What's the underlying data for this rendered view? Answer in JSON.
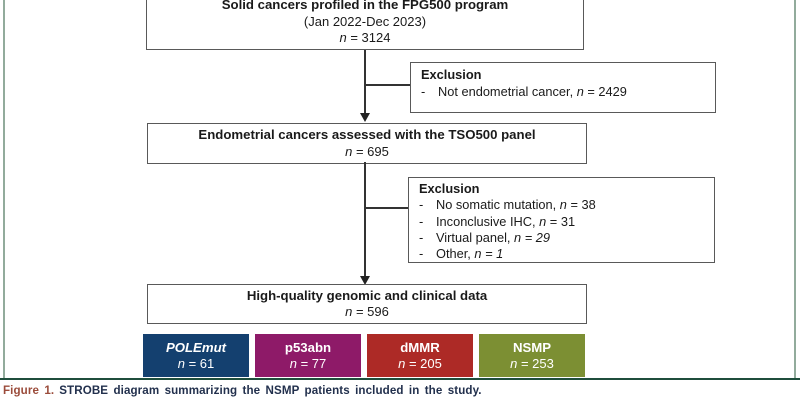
{
  "frame": {
    "side_rule_color": "#92ab9c",
    "bottom_rule_color": "#1f4e3c"
  },
  "diagram": {
    "box_top": {
      "title": "Solid cancers profiled in the FPG500 program",
      "subtitle": "(Jan 2022-Dec 2023)",
      "n_italic": "n",
      "n_rest": " = 3124"
    },
    "exclusion1": {
      "heading": "Exclusion",
      "bullets": [
        {
          "dash": "-",
          "text": "Not endometrial cancer, ",
          "it": "n",
          "rest": " = 2429"
        }
      ]
    },
    "box_tso": {
      "title": "Endometrial cancers assessed with the TSO500 panel",
      "n_italic": "n",
      "n_rest": " = 695"
    },
    "exclusion2": {
      "heading": "Exclusion",
      "bullets": [
        {
          "dash": "-",
          "text": "No somatic mutation, ",
          "it": "n",
          "rest": " = 38"
        },
        {
          "dash": "-",
          "text": "Inconclusive IHC, ",
          "it": "n",
          "rest": " = 31"
        },
        {
          "dash": "-",
          "text": "Virtual panel, ",
          "it": "n = 29",
          "rest": ""
        },
        {
          "dash": "-",
          "text": "Other, ",
          "it": "n = 1",
          "rest": ""
        }
      ]
    },
    "box_final": {
      "title": "High-quality genomic and clinical data",
      "n_italic": "n",
      "n_rest": " = 596"
    },
    "subtypes": [
      {
        "label": "POLEmut",
        "n_italic": "n",
        "n_rest": " = 61",
        "color": "#14406f"
      },
      {
        "label": "p53abn",
        "n_italic": "n",
        "n_rest": " = 77",
        "color": "#8e1a68"
      },
      {
        "label": "dMMR",
        "n_italic": "n",
        "n_rest": " = 205",
        "color": "#ad2a26"
      },
      {
        "label": "NSMP",
        "n_italic": "n",
        "n_rest": " = 253",
        "color": "#7c8f33"
      }
    ]
  },
  "caption": {
    "label": "Figure 1.",
    "text": "STROBE diagram summarizing the NSMP patients included in the study."
  }
}
